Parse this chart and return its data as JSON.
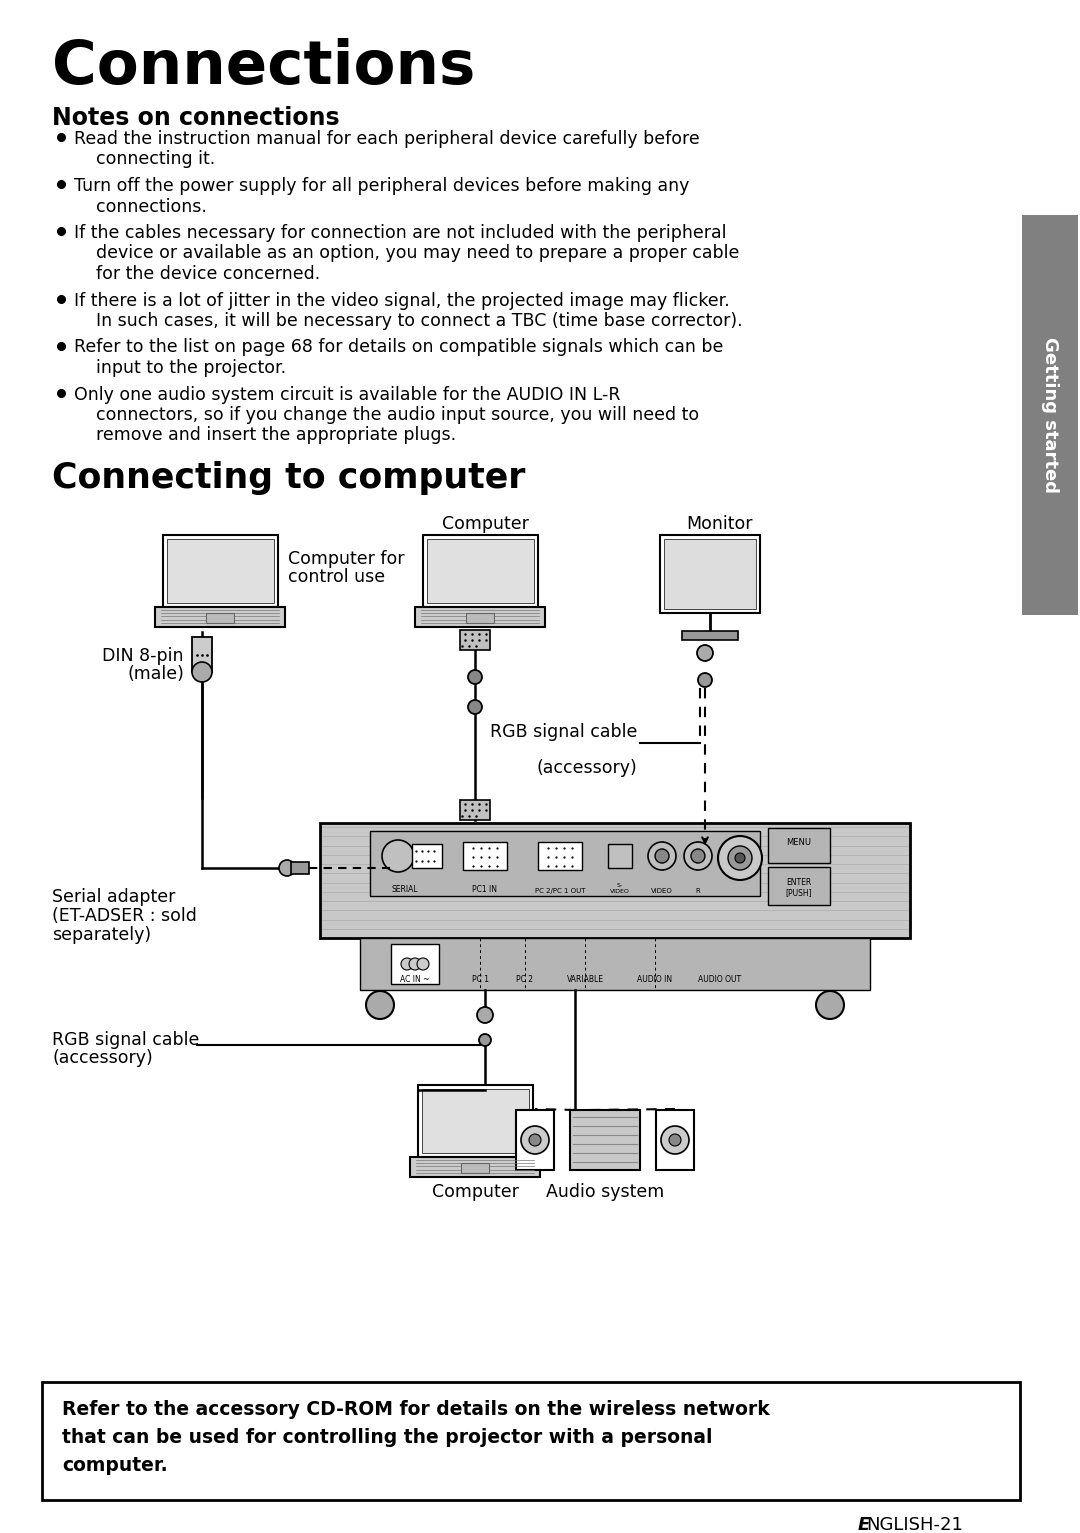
{
  "title": "Connections",
  "notes_title": "Notes on connections",
  "bullets": [
    [
      "Read the instruction manual for each peripheral device carefully before",
      "    connecting it."
    ],
    [
      "Turn off the power supply for all peripheral devices before making any",
      "    connections."
    ],
    [
      "If the cables necessary for connection are not included with the peripheral",
      "    device or available as an option, you may need to prepare a proper cable",
      "    for the device concerned."
    ],
    [
      "If there is a lot of jitter in the video signal, the projected image may flicker.",
      "    In such cases, it will be necessary to connect a TBC (time base corrector)."
    ],
    [
      "Refer to the list on page 68 for details on compatible signals which can be",
      "    input to the projector."
    ],
    [
      "Only one audio system circuit is available for the AUDIO IN L-R",
      "    connectors, so if you change the audio input source, you will need to",
      "    remove and insert the appropriate plugs."
    ]
  ],
  "section2": "Connecting to computer",
  "side_tab": "Getting started",
  "label_computer": "Computer",
  "label_monitor": "Monitor",
  "label_computer_for": "Computer for",
  "label_control_use": "control use",
  "label_din": "DIN 8-pin",
  "label_male": "(male)",
  "label_serial_adapter": "Serial adapter",
  "label_et_adser": "(ET-ADSER : sold",
  "label_separately": "separately)",
  "label_rgb_upper": "RGB signal cable",
  "label_accessory": "(accessory)",
  "label_rgb_lower": "RGB signal cable",
  "label_computer_bot": "Computer",
  "label_audio_system": "Audio system",
  "note_box_lines": [
    "Refer to the accessory CD-ROM for details on the wireless network",
    "that can be used for controlling the projector with a personal",
    "computer."
  ],
  "footer_prefix": "E",
  "footer_suffix": "NGLISH-21",
  "bg": "#ffffff",
  "fg": "#000000",
  "tab_color": "#808080",
  "gray_light": "#d8d8d8",
  "gray_mid": "#b0b0b0",
  "gray_dark": "#888888"
}
